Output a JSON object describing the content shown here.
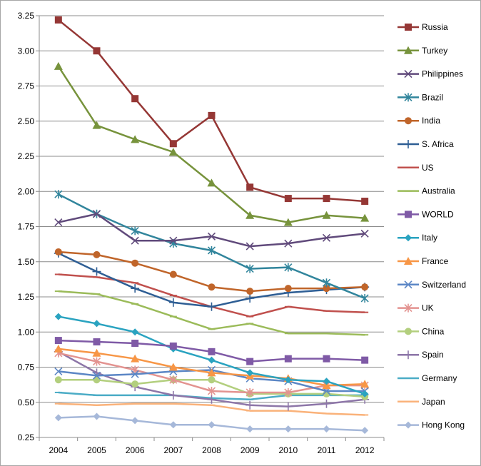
{
  "chart_data": {
    "type": "line",
    "title": "",
    "xlabel": "",
    "ylabel": "",
    "grid": true,
    "legend_position": "right",
    "ylim": [
      0.25,
      3.25
    ],
    "yticks": [
      "0.25",
      "0.50",
      "0.75",
      "1.00",
      "1.25",
      "1.50",
      "1.75",
      "2.00",
      "2.25",
      "2.50",
      "2.75",
      "3.00",
      "3.25"
    ],
    "x": [
      "2004",
      "2005",
      "2006",
      "2007",
      "2008",
      "2009",
      "2010",
      "2011",
      "2012"
    ],
    "series": [
      {
        "name": "Russia",
        "color": "#953735",
        "marker": "square",
        "values": [
          3.22,
          3.0,
          2.66,
          2.34,
          2.54,
          2.03,
          1.95,
          1.95,
          1.93
        ]
      },
      {
        "name": "Turkey",
        "color": "#77933c",
        "marker": "triangle",
        "values": [
          2.89,
          2.47,
          2.37,
          2.28,
          2.06,
          1.83,
          1.78,
          1.83,
          1.81
        ]
      },
      {
        "name": "Philippines",
        "color": "#604a7b",
        "marker": "x",
        "values": [
          1.78,
          1.84,
          1.65,
          1.65,
          1.68,
          1.61,
          1.63,
          1.67,
          1.7
        ]
      },
      {
        "name": "Brazil",
        "color": "#31859c",
        "marker": "star",
        "values": [
          1.98,
          1.84,
          1.72,
          1.63,
          1.58,
          1.45,
          1.46,
          1.35,
          1.24
        ]
      },
      {
        "name": "India",
        "color": "#c0652a",
        "marker": "circle",
        "values": [
          1.57,
          1.55,
          1.49,
          1.41,
          1.32,
          1.29,
          1.31,
          1.31,
          1.32
        ]
      },
      {
        "name": "S. Africa",
        "color": "#2e5e94",
        "marker": "plus",
        "values": [
          1.56,
          1.43,
          1.31,
          1.21,
          1.18,
          1.24,
          1.28,
          1.3,
          1.32
        ]
      },
      {
        "name": "US",
        "color": "#c0504d",
        "marker": "dash",
        "values": [
          1.41,
          1.39,
          1.35,
          1.26,
          1.18,
          1.11,
          1.18,
          1.15,
          1.14
        ]
      },
      {
        "name": "Australia",
        "color": "#9bbb59",
        "marker": "dash",
        "values": [
          1.29,
          1.27,
          1.2,
          1.11,
          1.02,
          1.06,
          0.99,
          0.99,
          0.98
        ]
      },
      {
        "name": "WORLD",
        "color": "#7f5aa6",
        "marker": "square",
        "values": [
          0.94,
          0.93,
          0.92,
          0.9,
          0.86,
          0.79,
          0.81,
          0.81,
          0.8
        ]
      },
      {
        "name": "Italy",
        "color": "#2aa3c0",
        "marker": "diamond",
        "values": [
          1.11,
          1.06,
          1.0,
          0.88,
          0.8,
          0.71,
          0.66,
          0.65,
          0.56
        ]
      },
      {
        "name": "France",
        "color": "#f79646",
        "marker": "triangle",
        "values": [
          0.88,
          0.85,
          0.81,
          0.75,
          0.71,
          0.69,
          0.67,
          0.62,
          0.63
        ]
      },
      {
        "name": "Switzerland",
        "color": "#5b86c5",
        "marker": "x",
        "values": [
          0.72,
          0.69,
          0.7,
          0.72,
          0.73,
          0.67,
          0.65,
          0.58,
          0.58
        ]
      },
      {
        "name": "UK",
        "color": "#e39390",
        "marker": "star",
        "values": [
          0.85,
          0.79,
          0.73,
          0.66,
          0.58,
          0.57,
          0.57,
          0.62,
          0.62
        ]
      },
      {
        "name": "China",
        "color": "#b3cf7e",
        "marker": "circle",
        "values": [
          0.66,
          0.66,
          0.63,
          0.66,
          0.66,
          0.56,
          0.56,
          0.56,
          0.54
        ]
      },
      {
        "name": "Spain",
        "color": "#8d76a8",
        "marker": "plus",
        "values": [
          0.86,
          0.71,
          0.61,
          0.55,
          0.52,
          0.48,
          0.47,
          0.49,
          0.52
        ]
      },
      {
        "name": "Germany",
        "color": "#4bacc6",
        "marker": "dash",
        "values": [
          0.57,
          0.55,
          0.55,
          0.55,
          0.53,
          0.52,
          0.55,
          0.55,
          0.55
        ]
      },
      {
        "name": "Japan",
        "color": "#fab27a",
        "marker": "dash",
        "values": [
          0.49,
          0.48,
          0.49,
          0.49,
          0.48,
          0.44,
          0.44,
          0.42,
          0.41
        ]
      },
      {
        "name": "Hong Kong",
        "color": "#a6b8d9",
        "marker": "diamond",
        "values": [
          0.39,
          0.4,
          0.37,
          0.34,
          0.34,
          0.31,
          0.31,
          0.31,
          0.3
        ]
      }
    ]
  }
}
